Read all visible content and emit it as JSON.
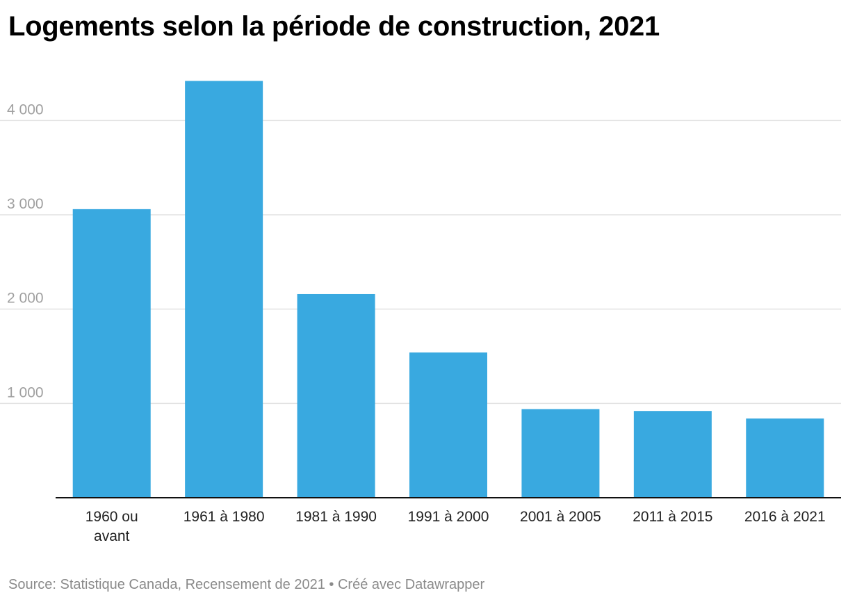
{
  "title": "Logements selon la période de construction, 2021",
  "footer": {
    "source": "Source: Statistique Canada, Recensement de 2021",
    "separator": " • ",
    "credit": "Créé avec Datawrapper"
  },
  "colors": {
    "bar": "#39a9e0",
    "grid": "#e2e2e2",
    "axis": "#111111"
  },
  "chart_data": {
    "type": "bar",
    "categories": [
      [
        "1960 ou",
        "avant"
      ],
      [
        "1961 à 1980"
      ],
      [
        "1981 à 1990"
      ],
      [
        "1991 à 2000"
      ],
      [
        "2001 à 2005"
      ],
      [
        "2011 à 2015"
      ],
      [
        "2016 à 2021"
      ]
    ],
    "values": [
      3060,
      4420,
      2160,
      1540,
      940,
      920,
      840
    ],
    "yticks": [
      1000,
      2000,
      3000,
      4000
    ],
    "ytick_labels": [
      "1 000",
      "2 000",
      "3 000",
      "4 000"
    ],
    "ylim": [
      0,
      4600
    ],
    "grid": true,
    "legend": "none"
  }
}
